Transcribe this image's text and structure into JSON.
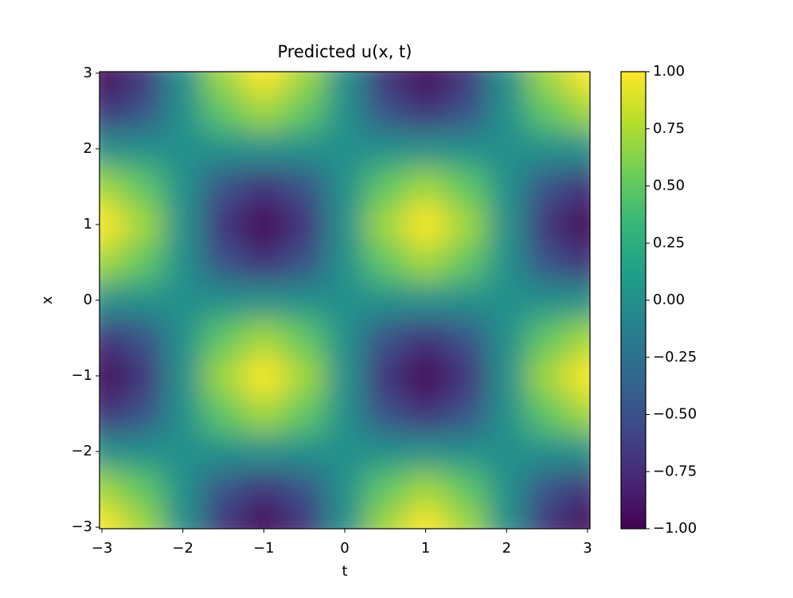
{
  "chart_data": {
    "type": "heatmap",
    "title": "Predicted u(x, t)",
    "xlabel": "t",
    "ylabel": "x",
    "t": [
      -3,
      -2.5,
      -2,
      -1.5,
      -1,
      -0.5,
      0,
      0.5,
      1,
      1.5,
      2,
      2.5,
      3
    ],
    "x": [
      -3,
      -2.5,
      -2,
      -1.5,
      -1,
      -0.5,
      0,
      0.5,
      1,
      1.5,
      2,
      2.5,
      3
    ],
    "z": [
      [
        1,
        0.71,
        0,
        -0.71,
        -1,
        -0.71,
        0,
        0.71,
        1,
        0.71,
        0,
        -0.71,
        -1
      ],
      [
        0.71,
        0.5,
        0,
        -0.5,
        -0.71,
        -0.5,
        0,
        0.5,
        0.71,
        0.5,
        0,
        -0.5,
        -0.71
      ],
      [
        0,
        0,
        0,
        0,
        0,
        0,
        0,
        0,
        0,
        0,
        0,
        0,
        0
      ],
      [
        -0.71,
        -0.5,
        0,
        0.5,
        0.71,
        0.5,
        0,
        -0.5,
        -0.71,
        -0.5,
        0,
        0.5,
        0.71
      ],
      [
        -1,
        -0.71,
        0,
        0.71,
        1,
        0.71,
        0,
        -0.71,
        -1,
        -0.71,
        0,
        0.71,
        1
      ],
      [
        -0.71,
        -0.5,
        0,
        0.5,
        0.71,
        0.5,
        0,
        -0.5,
        -0.71,
        -0.5,
        0,
        0.5,
        0.71
      ],
      [
        0,
        0,
        0,
        0,
        0,
        0,
        0,
        0,
        0,
        0,
        0,
        0,
        0
      ],
      [
        0.71,
        0.5,
        0,
        -0.5,
        -0.71,
        -0.5,
        0,
        0.5,
        0.71,
        0.5,
        0,
        -0.5,
        -0.71
      ],
      [
        1,
        0.71,
        0,
        -0.71,
        -1,
        -0.71,
        0,
        0.71,
        1,
        0.71,
        0,
        -0.71,
        -1
      ],
      [
        0.71,
        0.5,
        0,
        -0.5,
        -0.71,
        -0.5,
        0,
        0.5,
        0.71,
        0.5,
        0,
        -0.5,
        -0.71
      ],
      [
        0,
        0,
        0,
        0,
        0,
        0,
        0,
        0,
        0,
        0,
        0,
        0,
        0
      ],
      [
        -0.71,
        -0.5,
        0,
        0.5,
        0.71,
        0.5,
        0,
        -0.5,
        -0.71,
        -0.5,
        0,
        0.5,
        0.71
      ],
      [
        -1,
        -0.71,
        0,
        0.71,
        1,
        0.71,
        0,
        -0.71,
        -1,
        -0.71,
        0,
        0.71,
        1
      ]
    ],
    "xlim": [
      -3.03,
      3.03
    ],
    "ylim": [
      -3.02,
      3.02
    ],
    "xticks": [
      {
        "value": -3,
        "label": "−3"
      },
      {
        "value": -2,
        "label": "−2"
      },
      {
        "value": -1,
        "label": "−1"
      },
      0,
      1,
      2,
      3
    ],
    "yticks": [
      {
        "value": -3,
        "label": "−3"
      },
      {
        "value": -2,
        "label": "−2"
      },
      {
        "value": -1,
        "label": "−1"
      },
      0,
      1,
      2,
      3
    ],
    "clim": [
      -1,
      1
    ],
    "cticks": [
      {
        "value": -1,
        "label": "−1.00"
      },
      {
        "value": -0.75,
        "label": "−0.75"
      },
      {
        "value": -0.5,
        "label": "−0.50"
      },
      {
        "value": -0.25,
        "label": "−0.25"
      },
      {
        "value": 0,
        "label": "0.00"
      },
      {
        "value": 0.25,
        "label": "0.25"
      },
      {
        "value": 0.5,
        "label": "0.50"
      },
      {
        "value": 0.75,
        "label": "0.75"
      },
      {
        "value": 1,
        "label": "1.00"
      }
    ],
    "colormap": [
      "#440154",
      "#482878",
      "#3e4989",
      "#31688e",
      "#26828e",
      "#1f9e89",
      "#35b779",
      "#6ece58",
      "#b5de2b",
      "#fde725"
    ]
  }
}
